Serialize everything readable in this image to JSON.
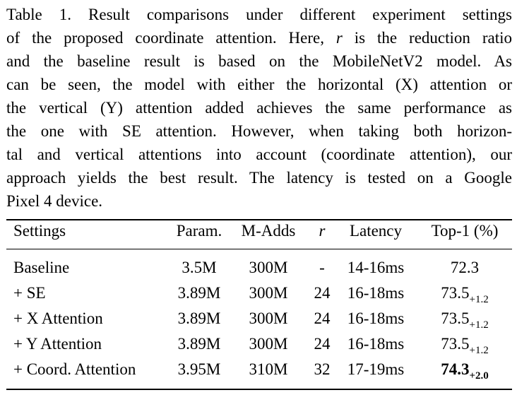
{
  "caption": {
    "lines": [
      "Table 1. Result comparisons under different experiment settings",
      "of the proposed coordinate attention. Here, r is the reduction ratio",
      "and the baseline result is based on the MobileNetV2 model. As",
      "can be seen, the model with either the horizontal (X) attention or",
      "the vertical (Y) attention added achieves the same performance as",
      "the one with SE attention. However, when taking both horizon-",
      "tal and vertical attentions into account (coordinate attention), our",
      "approach yields the best result. The latency is tested on a Google",
      "Pixel 4 device."
    ]
  },
  "table": {
    "headers": {
      "settings": "Settings",
      "params": "Param.",
      "madds": "M-Adds",
      "r": "r",
      "latency": "Latency",
      "top1": "Top-1 (%)"
    },
    "rows": [
      {
        "settings": "Baseline",
        "params": "3.5M",
        "madds": "300M",
        "r": "-",
        "latency": "14-16ms",
        "top1": "72.3",
        "delta": ""
      },
      {
        "settings": "+ SE",
        "params": "3.89M",
        "madds": "300M",
        "r": "24",
        "latency": "16-18ms",
        "top1": "73.5",
        "delta": "+1.2"
      },
      {
        "settings": "+ X Attention",
        "params": "3.89M",
        "madds": "300M",
        "r": "24",
        "latency": "16-18ms",
        "top1": "73.5",
        "delta": "+1.2"
      },
      {
        "settings": "+ Y Attention",
        "params": "3.89M",
        "madds": "300M",
        "r": "24",
        "latency": "16-18ms",
        "top1": "73.5",
        "delta": "+1.2"
      },
      {
        "settings": "+ Coord. Attention",
        "params": "3.95M",
        "madds": "310M",
        "r": "32",
        "latency": "17-19ms",
        "top1": "74.3",
        "delta": "+2.0"
      }
    ]
  }
}
